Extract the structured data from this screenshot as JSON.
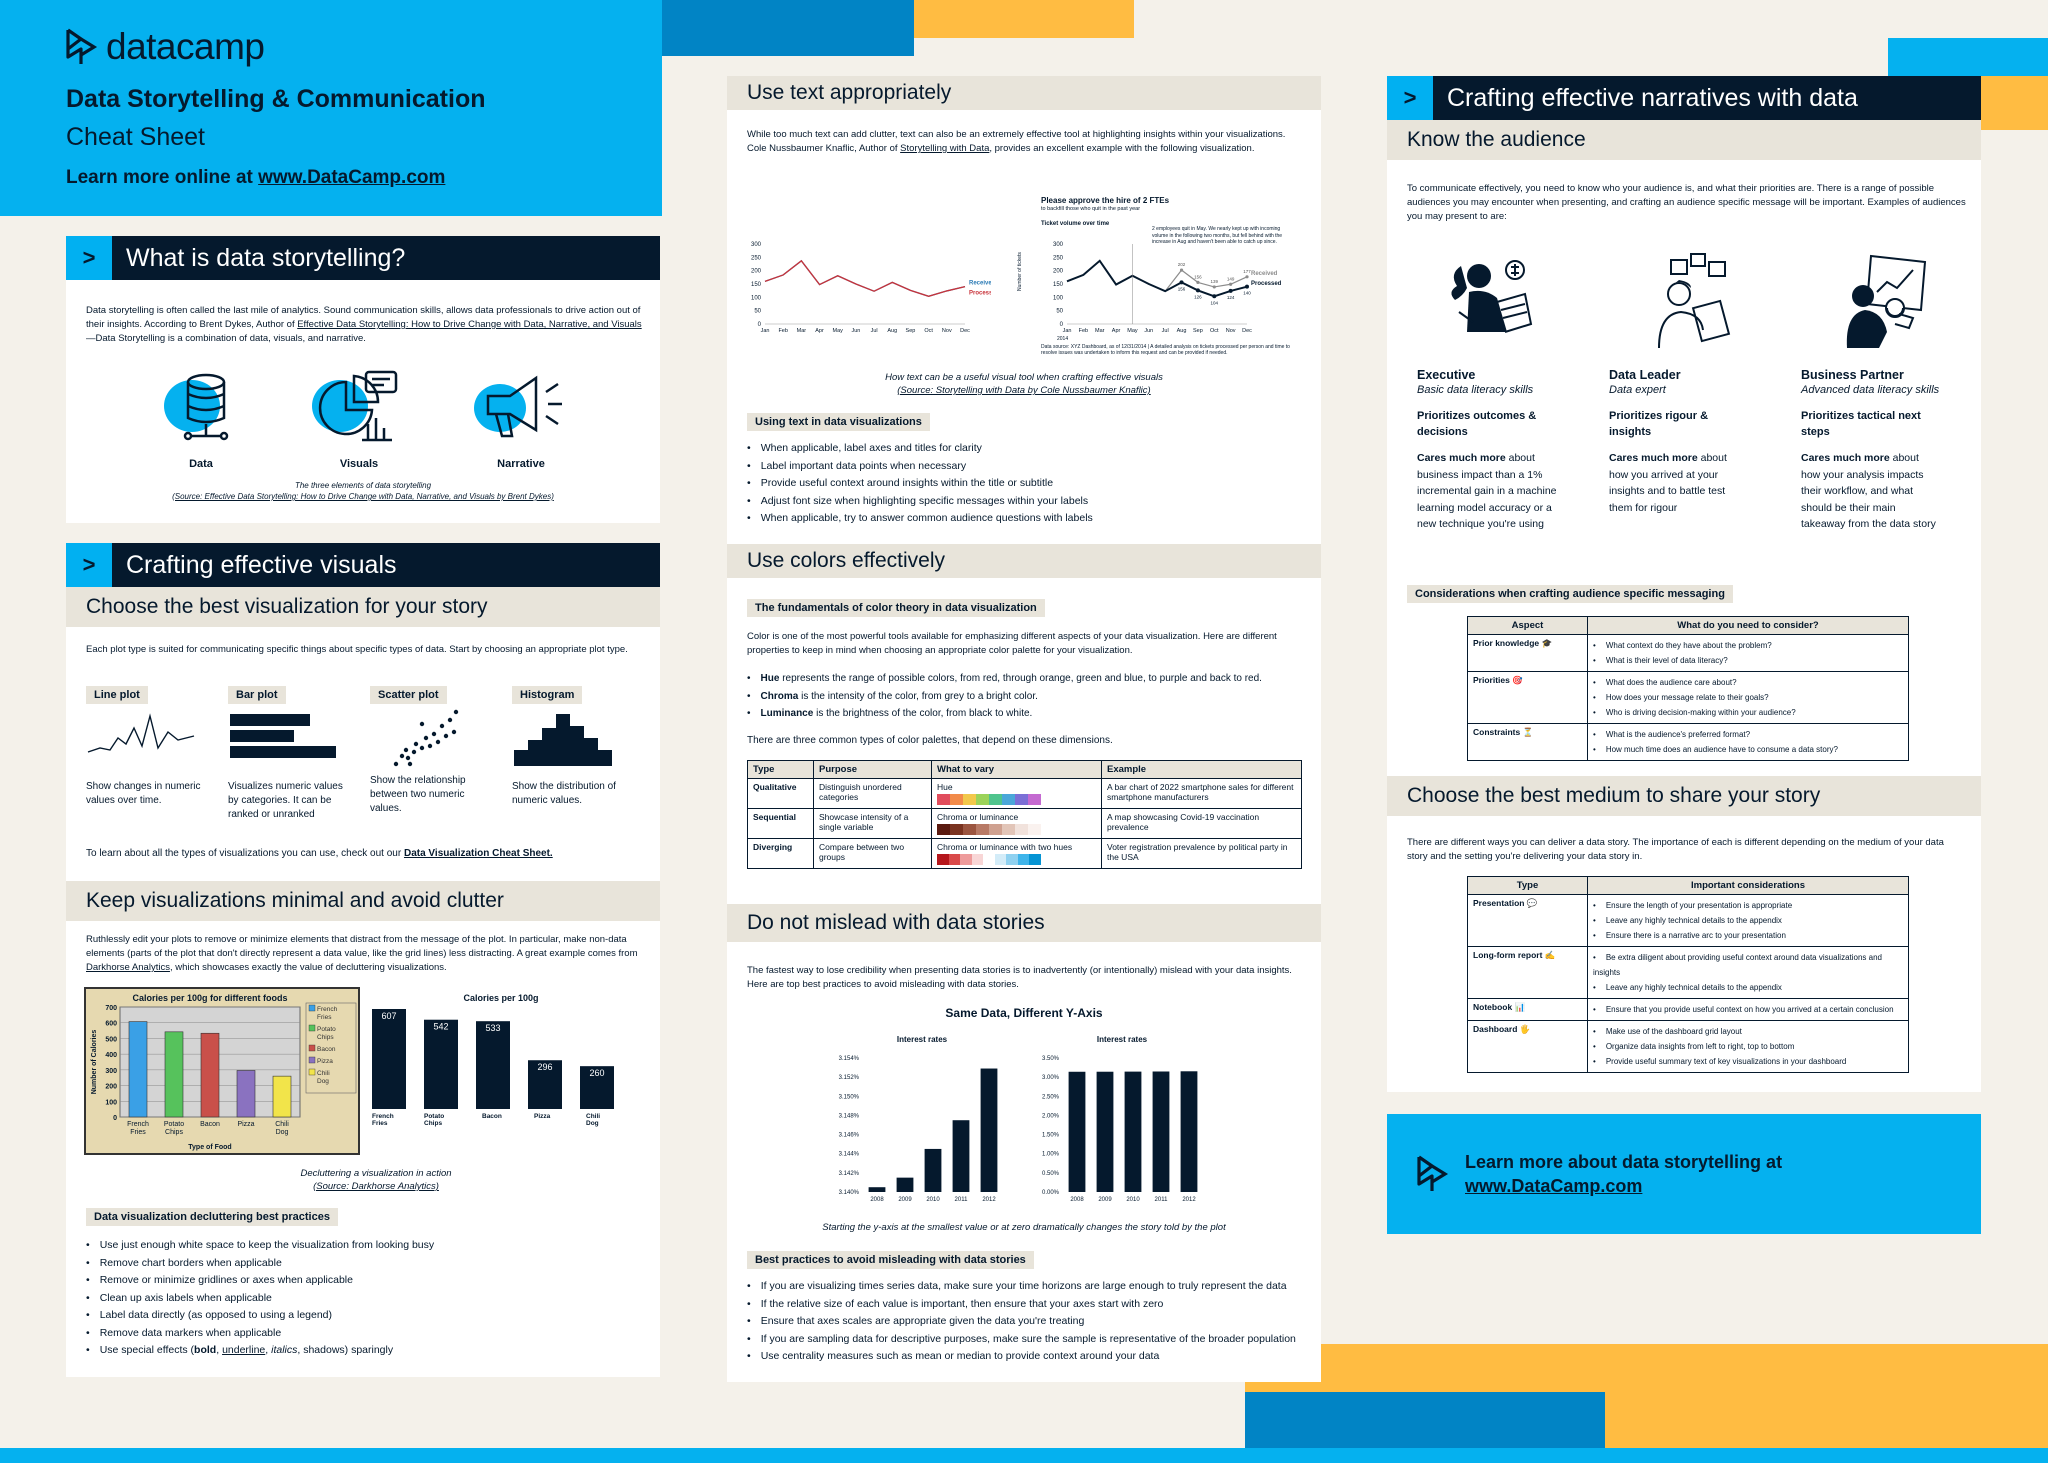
{
  "header": {
    "brand": "datacamp",
    "title": "Data Storytelling & Communication",
    "subtitle": "Cheat Sheet",
    "learn_prefix": "Learn more online at ",
    "learn_link": "www.DataCamp.com"
  },
  "s1": {
    "title": "What is data storytelling?",
    "body_a": "Data storytelling is often called the last mile of analytics. Sound communication skills, allows data professionals to drive action out of their insights. According to Brent Dykes, Author of ",
    "body_link": "Effective Data Storytelling: How to Drive Change with Data, Narrative, and Visuals",
    "body_b": "—Data Storytelling is a combination of data, visuals, and narrative.",
    "el1": "Data",
    "el2": "Visuals",
    "el3": "Narrative",
    "cap1": "The three elements of data storytelling",
    "cap2": "(Source: Effective Data Storytelling: How to Drive Change with Data, Narrative, and Visuals by Brent Dykes)"
  },
  "s2": {
    "title": "Crafting effective visuals",
    "sub1": "Choose the best visualization for your story",
    "intro": "Each plot type is suited for communicating specific things about specific types of data. Start by choosing an appropriate plot type.",
    "plots": [
      {
        "name": "Line plot",
        "desc": "Show changes in numeric values over time."
      },
      {
        "name": "Bar plot",
        "desc": "Visualizes numeric values by categories. It can be ranked or unranked"
      },
      {
        "name": "Scatter plot",
        "desc": "Show the relationship between two numeric values."
      },
      {
        "name": "Histogram",
        "desc": "Show the distribution of numeric values."
      }
    ],
    "more_a": "To learn about all the types of visualizations you can use, check out our ",
    "more_link": "Data Visualization Cheat Sheet.",
    "sub2": "Keep visualizations minimal and avoid clutter",
    "clutter_a": "Ruthlessly edit your plots to remove or minimize elements that distract from the message of the plot. In particular, make non-data elements (parts of the plot that don't directly represent a data value, like the grid lines) less distracting. A great example comes from ",
    "clutter_link": "Darkhorse Analytics",
    "clutter_b": ", which showcases exactly the value of decluttering visualizations.",
    "cap1": "Decluttering a visualization in action",
    "cap2": "(Source: Darkhorse Analytics)",
    "tag": "Data visualization decluttering best practices",
    "bullets": [
      "Use just enough white space to keep the visualization from looking busy",
      "Remove chart borders when applicable",
      "Remove or minimize gridlines or axes when applicable",
      "Clean up axis labels when applicable",
      "Label data directly (as opposed to using a legend)",
      "Remove data markers when applicable"
    ],
    "last_a": "Use special effects (",
    "last_bold": "bold",
    "last_c": ", ",
    "last_u": "underline",
    "last_i": "italics",
    "last_d": ", shadows) sparingly"
  },
  "s3": {
    "title": "Use text appropriately",
    "body_a": "While too much text can add clutter, text can also be an extremely effective tool at highlighting insights within your visualizations. Cole Nussbaumer Knaflic, Author of ",
    "body_link": "Storytelling with Data",
    "body_b": ", provides an excellent example with the following visualization.",
    "chart_title": "Please approve the hire of 2 FTEs",
    "chart_sub": "to backfill those who quit in the past year",
    "chart_l": "Ticket volume over time",
    "chart_note": "2 employees quit in May. We nearly kept up with incoming volume in the following two months, but fell behind with the increase in Aug and haven't been able to catch up since.",
    "chart_src": "Data source: XYZ Dashboard, as of 12/31/2014 | A detailed analysis on tickets processed per person and time to resolve issues was undertaken to inform this request and can be provided if needed.",
    "legend_r": "Received",
    "legend_p": "Processed",
    "ylabel": "Number of tickets",
    "year": "2014",
    "cap1": "How text can be a useful visual tool when crafting effective visuals",
    "cap2": "(Source: Storytelling with Data by Cole Nussbaumer Knaflic)",
    "tag": "Using text in data visualizations",
    "bullets": [
      "When applicable, label axes and titles for clarity",
      "Label important data points when necessary",
      "Provide useful context around insights within the title or subtitle",
      "Adjust font size when highlighting specific messages within your labels",
      "When applicable, try to answer common audience questions with labels"
    ]
  },
  "s4": {
    "title": "Use colors effectively",
    "tag": "The fundamentals of color theory in data visualization",
    "body": "Color is one of the most powerful tools available for emphasizing different aspects of your data visualization. Here are different properties to keep in mind when choosing an appropriate color palette for your visualization.",
    "b1k": "Hue",
    "b1": " represents the range of possible colors, from red, through orange, green and blue, to purple and back to red.",
    "b2k": "Chroma",
    "b2": " is the intensity of the color, from grey to a bright color.",
    "b3k": "Luminance",
    "b3": " is the brightness of the color, from black to white.",
    "three": "There are three common types of color palettes, that depend on these dimensions.",
    "h": [
      "Type",
      "Purpose",
      "What to vary",
      "Example"
    ],
    "rows": [
      {
        "type": "Qualitative",
        "purpose": "Distinguish unordered categories",
        "vary": "Hue",
        "ex": "A bar chart of 2022 smartphone sales for different smartphone manufacturers"
      },
      {
        "type": "Sequential",
        "purpose": "Showcase intensity of a single variable",
        "vary": "Chroma or luminance",
        "ex": "A map showcasing Covid-19 vaccination prevalence"
      },
      {
        "type": "Diverging",
        "purpose": "Compare between two groups",
        "vary": "Chroma or luminance with two hues",
        "ex": "Voter registration prevalence by political party in the USA"
      }
    ]
  },
  "s5": {
    "title": "Do not mislead with data stories",
    "body": "The fastest way to lose credibility when presenting data stories is to inadvertently (or intentionally) mislead with your data insights. Here are top best practices to avoid misleading with data stories.",
    "chart_title": "Same Data, Different Y-Axis",
    "cap": "Starting the y-axis at the smallest value or at zero dramatically changes the story told by the plot",
    "tag": "Best practices to avoid misleading with data stories",
    "bullets": [
      "If you are visualizing times series data, make sure your time horizons are large enough to truly represent the data",
      "If the relative size of each value is important, then ensure that your axes start with zero",
      "Ensure that axes scales are appropriate given the data you're treating",
      "If you are sampling data for descriptive purposes, make sure the sample is representative of the broader population",
      "Use centrality measures such as mean or median to provide context around your data"
    ]
  },
  "s6": {
    "title": "Crafting effective narratives with data",
    "sub1": "Know the audience",
    "intro": "To communicate effectively, you need to know who your audience is, and what their priorities are. There is a range of possible audiences you may encounter when presenting, and crafting an audience specific message will be important. Examples of audiences you may present to are:",
    "aud": [
      {
        "name": "Executive",
        "lit": "Basic data literacy skills",
        "pri": "Prioritizes outcomes & decisions",
        "cm": "Cares much more",
        "care": " about business impact than a 1% incremental gain in a machine learning model accuracy or a new technique you're using"
      },
      {
        "name": "Data Leader",
        "lit": "Data expert",
        "pri": "Prioritizes rigour & insights",
        "cm": "Cares much more",
        "care": " about how you arrived at your insights and to battle test them for rigour"
      },
      {
        "name": "Business Partner",
        "lit": "Advanced data literacy skills",
        "pri": "Prioritizes tactical next steps",
        "cm": "Cares much more",
        "care": " about how your analysis impacts their workflow, and what should be their main takeaway from the data story"
      }
    ],
    "tag": "Considerations when crafting audience specific messaging",
    "th1": "Aspect",
    "th2": "What do you need to consider?",
    "aspects": [
      {
        "a": "Prior knowledge 🎓",
        "q": [
          "What context do they have about the problem?",
          "What is their level of data literacy?"
        ]
      },
      {
        "a": "Priorities 🎯",
        "q": [
          "What does the audience care about?",
          "How does your message relate to their goals?",
          "Who is driving decision-making within your audience?"
        ]
      },
      {
        "a": "Constraints ⏳",
        "q": [
          "What is the audience's preferred format?",
          "How much time does an audience have to consume a data story?"
        ]
      }
    ],
    "sub2": "Choose the best medium to share your story",
    "intro2": "There are different ways you can deliver a data story. The importance of each is different depending on the medium of your data story and the setting you're delivering your data story in.",
    "mh1": "Type",
    "mh2": "Important considerations",
    "media": [
      {
        "a": "Presentation 💬",
        "q": [
          "Ensure the length of your presentation is appropriate",
          "Leave any highly technical details to the appendix",
          "Ensure there is a narrative arc to your presentation"
        ]
      },
      {
        "a": "Long-form report ✍",
        "q": [
          "Be extra diligent about providing useful context around data visualizations and insights",
          "Leave any highly technical details to the appendix"
        ]
      },
      {
        "a": "Notebook 📊",
        "q": [
          "Ensure that you provide useful context on how you arrived at a certain conclusion"
        ]
      },
      {
        "a": "Dashboard 🖐",
        "q": [
          "Make use of the dashboard grid layout",
          "Organize data insights from left to right, top to bottom",
          "Provide useful summary text of key visualizations in your dashboard"
        ]
      }
    ]
  },
  "footer": {
    "line1": "Learn more about data storytelling at",
    "link": "www.DataCamp.com"
  },
  "cal": {
    "title": "Calories per 100g for different foods",
    "ylabel": "Number of Calories",
    "xlabel": "Type of Food",
    "title2": "Calories per 100g"
  },
  "ir": {
    "t1": "Interest rates",
    "t2": "Interest rates"
  },
  "chart_data": [
    {
      "type": "line",
      "title": "",
      "x": [
        "Jan",
        "Feb",
        "Mar",
        "Apr",
        "May",
        "Jun",
        "Jul",
        "Aug",
        "Sep",
        "Oct",
        "Nov",
        "Dec"
      ],
      "ylim": [
        0,
        300
      ],
      "series": [
        {
          "name": "Received",
          "values": [
            160,
            184,
            237,
            148,
            181,
            150,
            123,
            156,
            126,
            104,
            124,
            140
          ]
        },
        {
          "name": "Processed",
          "values": [
            160,
            184,
            237,
            148,
            181,
            150,
            123,
            156,
            126,
            104,
            124,
            140
          ]
        }
      ]
    },
    {
      "type": "line",
      "title": "Please approve the hire of 2 FTEs",
      "x": [
        "Jan",
        "Feb",
        "Mar",
        "Apr",
        "May",
        "Jun",
        "Jul",
        "Aug",
        "Sep",
        "Oct",
        "Nov",
        "Dec"
      ],
      "ylim": [
        0,
        300
      ],
      "series": [
        {
          "name": "Received",
          "values": [
            160,
            184,
            237,
            148,
            181,
            150,
            123,
            202,
            156,
            139,
            149,
            177
          ]
        },
        {
          "name": "Processed",
          "values": [
            160,
            184,
            237,
            148,
            181,
            150,
            123,
            156,
            126,
            104,
            124,
            140
          ]
        }
      ]
    },
    {
      "type": "bar",
      "title": "Calories per 100g for different foods",
      "categories": [
        "French Fries",
        "Potato Chips",
        "Bacon",
        "Pizza",
        "Chili Dog"
      ],
      "values": [
        607,
        542,
        533,
        296,
        260
      ],
      "ylim": [
        0,
        700
      ],
      "xlabel": "Type of Food",
      "ylabel": "Number of Calories"
    },
    {
      "type": "bar",
      "title": "Calories per 100g",
      "categories": [
        "French Fries",
        "Potato Chips",
        "Bacon",
        "Pizza",
        "Chili Dog"
      ],
      "values": [
        607,
        542,
        533,
        296,
        260
      ]
    },
    {
      "type": "bar",
      "title": "Interest rates",
      "categories": [
        "2008",
        "2009",
        "2010",
        "2011",
        "2012"
      ],
      "values": [
        3.1405,
        3.1415,
        3.1445,
        3.1475,
        3.1529
      ],
      "ylim": [
        3.14,
        3.154
      ],
      "yticks": [
        "3.140%",
        "3.142%",
        "3.144%",
        "3.146%",
        "3.148%",
        "3.150%",
        "3.152%",
        "3.154%"
      ]
    },
    {
      "type": "bar",
      "title": "Interest rates",
      "categories": [
        "2008",
        "2009",
        "2010",
        "2011",
        "2012"
      ],
      "values": [
        3.1405,
        3.1415,
        3.1445,
        3.1475,
        3.1529
      ],
      "ylim": [
        0,
        3.5
      ],
      "yticks": [
        "0.00%",
        "0.50%",
        "1.00%",
        "1.50%",
        "2.00%",
        "2.50%",
        "3.00%",
        "3.50%"
      ]
    }
  ]
}
